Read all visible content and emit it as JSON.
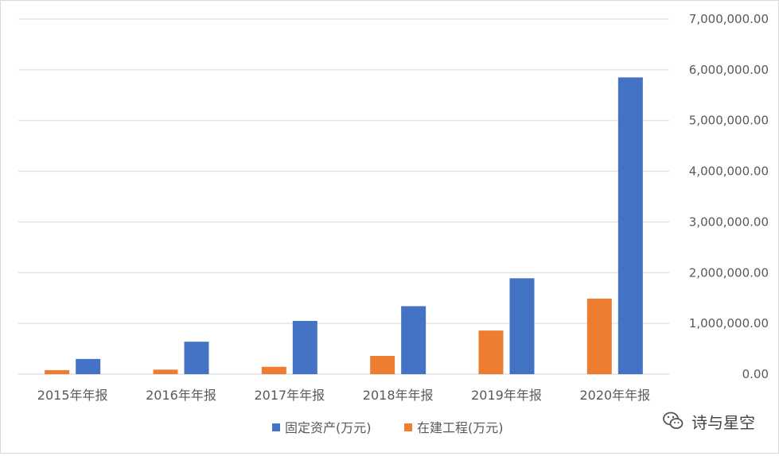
{
  "chart_data": {
    "type": "bar",
    "categories": [
      "2015年年报",
      "2016年年报",
      "2017年年报",
      "2018年年报",
      "2019年年报",
      "2020年年报"
    ],
    "series": [
      {
        "name": "固定资产(万元)",
        "color": "#4472c4",
        "values": [
          300000,
          640000,
          1050000,
          1340000,
          1890000,
          5850000
        ]
      },
      {
        "name": "在建工程(万元)",
        "color": "#ed7d31",
        "values": [
          80000,
          90000,
          145000,
          360000,
          860000,
          1490000
        ]
      }
    ],
    "ylim": [
      0,
      7000000
    ],
    "yticks": [
      "0.00",
      "1,000,000.00",
      "2,000,000.00",
      "3,000,000.00",
      "4,000,000.00",
      "5,000,000.00",
      "6,000,000.00",
      "7,000,000.00"
    ],
    "ytick_values": [
      0,
      1000000,
      2000000,
      3000000,
      4000000,
      5000000,
      6000000,
      7000000
    ],
    "grid": true,
    "legend_position": "bottom",
    "y_axis_side": "right"
  },
  "watermark": {
    "text": "诗与星空",
    "icon": "wechat-icon"
  }
}
